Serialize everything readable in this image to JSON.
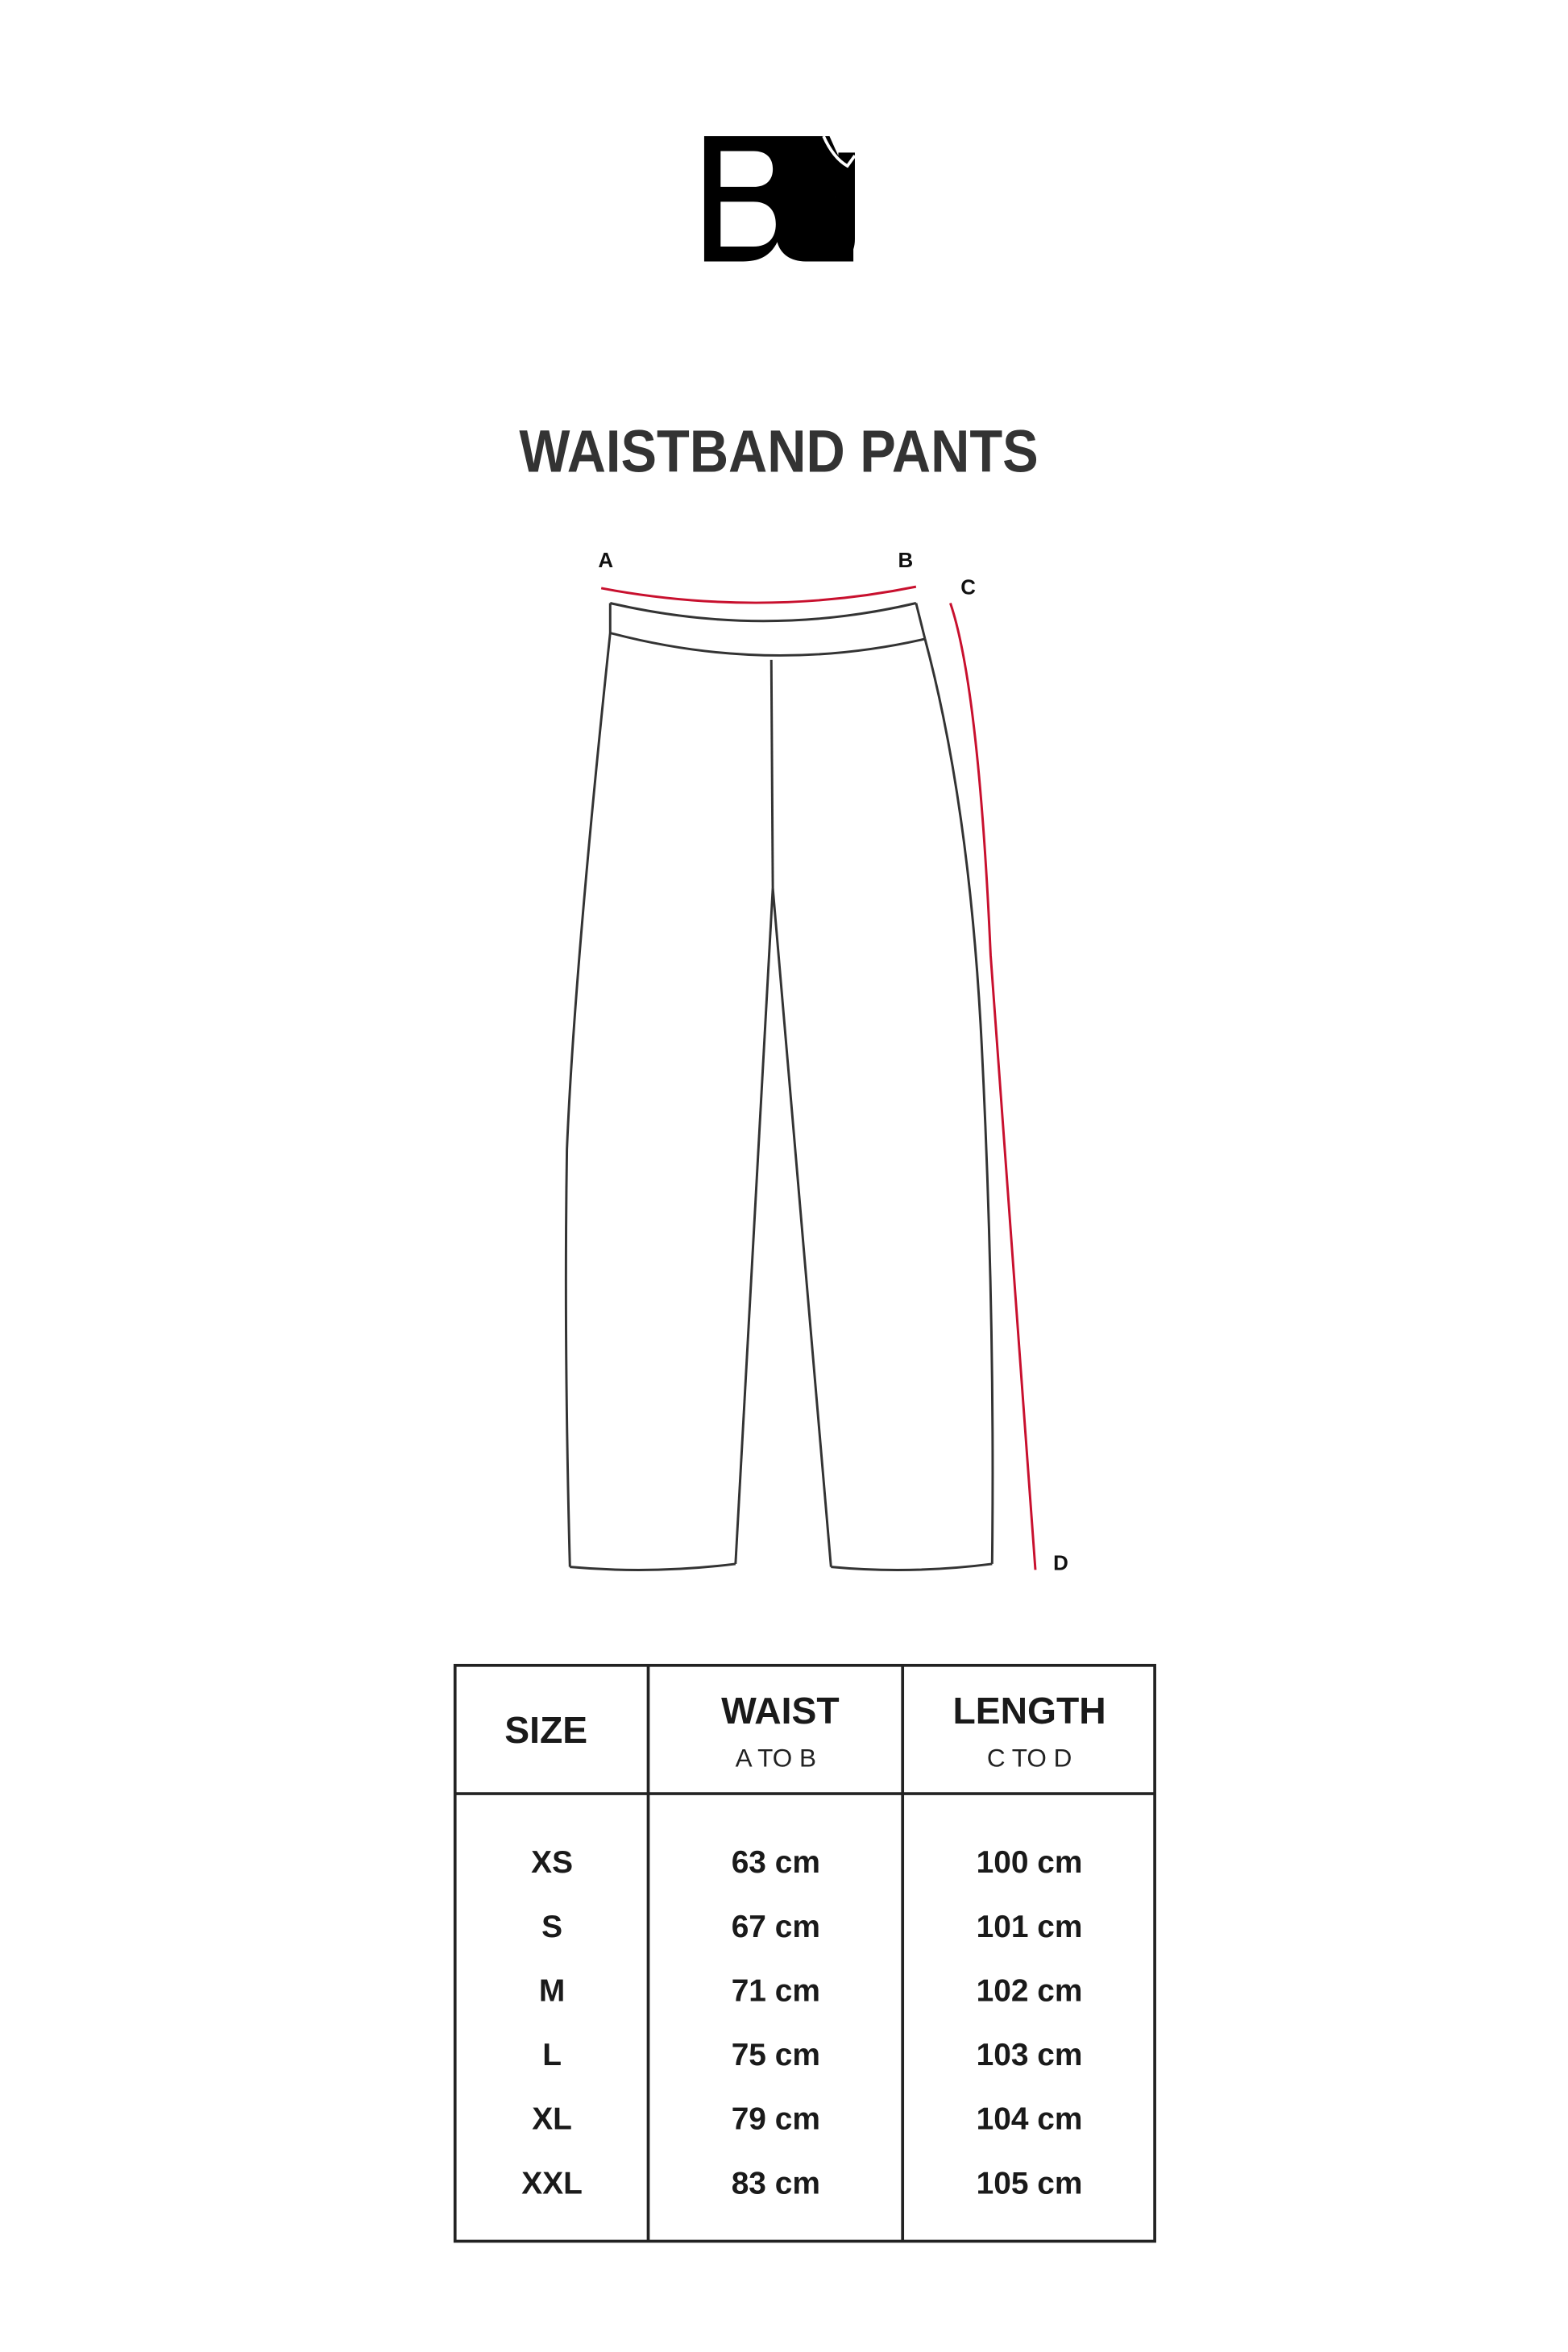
{
  "brand": {
    "logo_text": "BJ"
  },
  "title": "WAISTBAND PANTS",
  "diagram": {
    "points": {
      "a": "A",
      "b": "B",
      "c": "C",
      "d": "D"
    },
    "colors": {
      "outline": "#333333",
      "measure": "#c8102e"
    }
  },
  "table": {
    "headers": [
      {
        "label": "SIZE",
        "sub": ""
      },
      {
        "label": "WAIST",
        "sub": "A TO B"
      },
      {
        "label": "LENGTH",
        "sub": "C TO D"
      }
    ],
    "rows": [
      {
        "size": "XS",
        "waist": "63 cm",
        "length": "100 cm"
      },
      {
        "size": "S",
        "waist": "67 cm",
        "length": "101 cm"
      },
      {
        "size": "M",
        "waist": "71 cm",
        "length": "102 cm"
      },
      {
        "size": "L",
        "waist": "75 cm",
        "length": "103 cm"
      },
      {
        "size": "XL",
        "waist": "79 cm",
        "length": "104 cm"
      },
      {
        "size": "XXL",
        "waist": "83 cm",
        "length": "105 cm"
      }
    ]
  }
}
